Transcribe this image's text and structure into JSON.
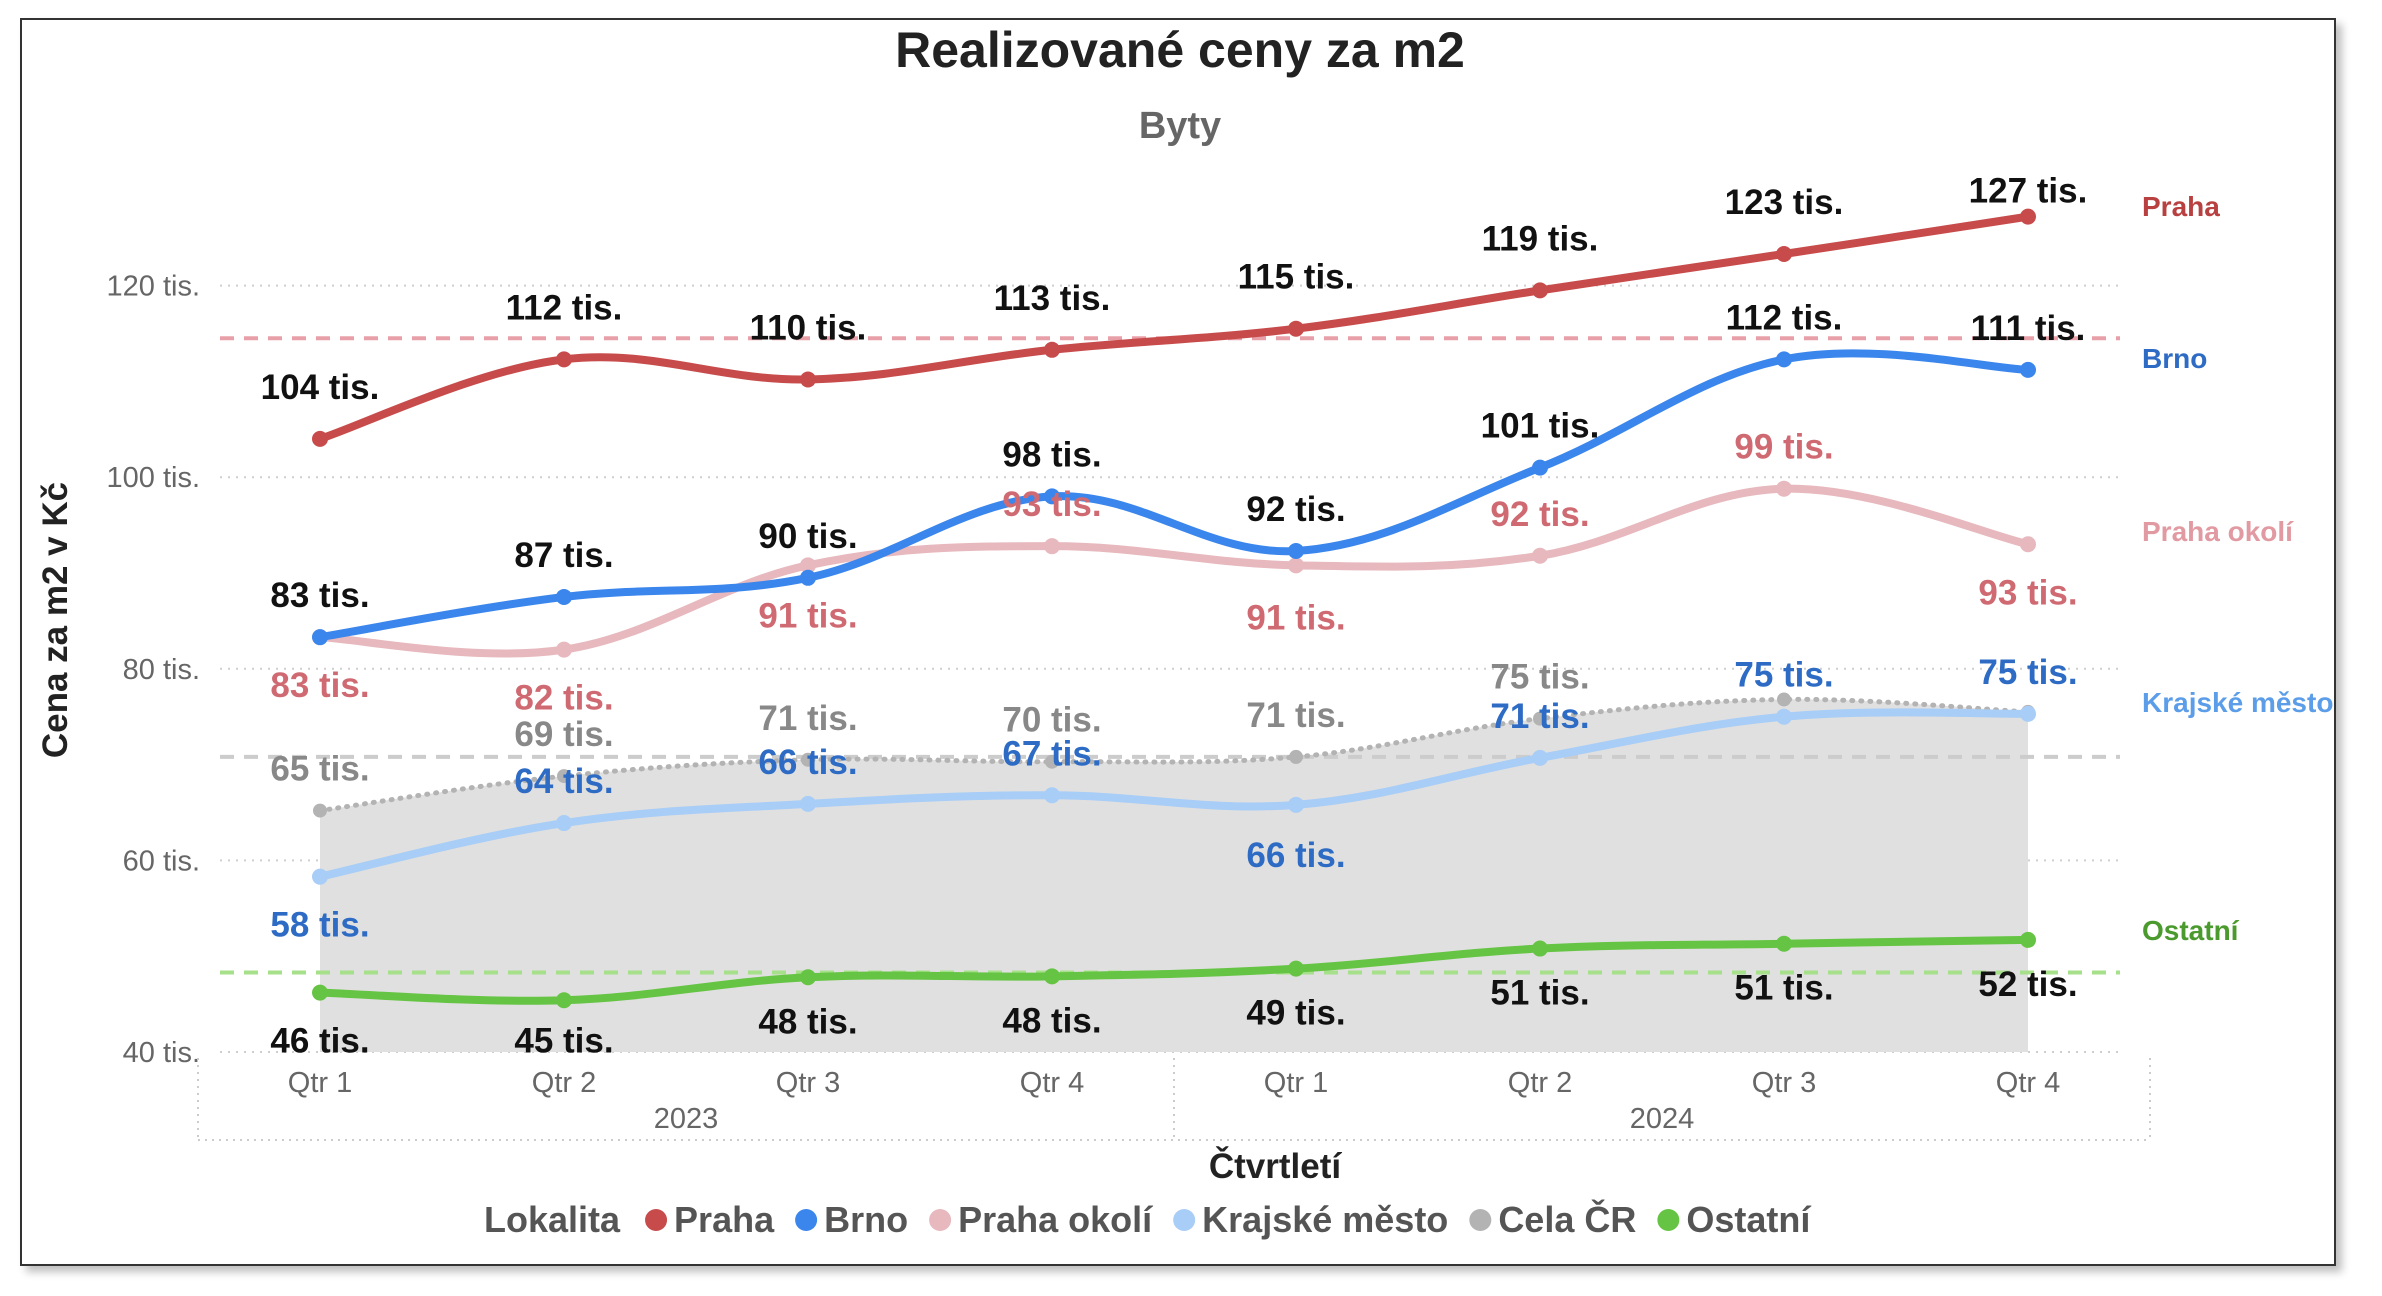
{
  "chart_data": {
    "type": "line",
    "title": "Realizované ceny za m2",
    "subtitle": "Byty",
    "xlabel": "Čtvrtletí",
    "ylabel": "Cena za m2 v Kč",
    "ylim": [
      40,
      130
    ],
    "yticks": [
      {
        "value": 40,
        "label": "40 tis."
      },
      {
        "value": 60,
        "label": "60 tis."
      },
      {
        "value": 80,
        "label": "80 tis."
      },
      {
        "value": 100,
        "label": "100 tis."
      },
      {
        "value": 120,
        "label": "120 tis."
      }
    ],
    "categories": [
      "Qtr 1",
      "Qtr 2",
      "Qtr 3",
      "Qtr 4",
      "Qtr 1",
      "Qtr 2",
      "Qtr 3",
      "Qtr 4"
    ],
    "year_groups": [
      {
        "label": "2023",
        "span": 4
      },
      {
        "label": "2024",
        "span": 4
      }
    ],
    "legend_title": "Lokalita",
    "legend_position": "bottom",
    "grid": "horizontal dotted",
    "series": [
      {
        "name": "Praha",
        "color": "#c84b4b",
        "style": "solid",
        "values": [
          104,
          112.3,
          110.2,
          113.3,
          115.5,
          119.5,
          123.3,
          127.2
        ],
        "labels": [
          "104 tis.",
          "112 tis.",
          "110 tis.",
          "113 tis.",
          "115 tis.",
          "119 tis.",
          "123 tis.",
          "127 tis."
        ],
        "label_color": "#111111",
        "average": 114.5,
        "average_color": "#e8a0a8"
      },
      {
        "name": "Brno",
        "color": "#3a86ec",
        "style": "solid",
        "values": [
          83.3,
          87.5,
          89.5,
          98,
          92.3,
          101,
          112.3,
          111.2
        ],
        "labels": [
          "83 tis.",
          "87 tis.",
          "90 tis.",
          "98 tis.",
          "92 tis.",
          "101 tis.",
          "112 tis.",
          "111 tis."
        ],
        "label_color": "#111111"
      },
      {
        "name": "Praha okolí",
        "color": "#e7b8bd",
        "style": "solid",
        "values": [
          83.3,
          82,
          90.8,
          92.8,
          90.8,
          91.8,
          98.8,
          93
        ],
        "labels": [
          "83 tis.",
          "82 tis.",
          "91 tis.",
          "93 tis.",
          "91 tis.",
          "92 tis.",
          "99 tis.",
          "93 tis."
        ],
        "label_color": "#d06a72"
      },
      {
        "name": "Krajské město",
        "color": "#a8cdf6",
        "style": "solid",
        "values": [
          58.3,
          63.9,
          65.9,
          66.8,
          65.8,
          70.7,
          75,
          75.3
        ],
        "labels": [
          "58 tis.",
          "64 tis.",
          "66 tis.",
          "67 tis.",
          "66 tis.",
          "71 tis.",
          "75 tis.",
          "75 tis."
        ],
        "label_color": "#2d6bc4"
      },
      {
        "name": "Cela ČR",
        "color": "#b3b3b3",
        "style": "dotted",
        "area": true,
        "values": [
          65.2,
          68.8,
          70.5,
          70.3,
          70.8,
          74.8,
          76.8,
          75.5
        ],
        "labels": [
          "65 tis.",
          "69 tis.",
          "71 tis.",
          "70 tis.",
          "71 tis.",
          "75 tis.",
          "",
          ""
        ],
        "label_color": "#888888",
        "average": 70.8,
        "average_color": "#cccccc"
      },
      {
        "name": "Ostatní",
        "color": "#66c444",
        "style": "solid",
        "values": [
          46.2,
          45.4,
          47.8,
          47.9,
          48.7,
          50.8,
          51.3,
          51.7
        ],
        "labels": [
          "46 tis.",
          "45 tis.",
          "48 tis.",
          "48 tis.",
          "49 tis.",
          "51 tis.",
          "51 tis.",
          "52 tis."
        ],
        "label_color": "#111111",
        "average": 48.3,
        "average_color": "#a6e08a"
      }
    ],
    "end_labels": [
      {
        "text": "Praha",
        "color": "#b84040"
      },
      {
        "text": "Brno",
        "color": "#2d6bc4"
      },
      {
        "text": "Praha okolí",
        "color": "#e29aa2"
      },
      {
        "text": "Krajské město",
        "color": "#5b9de8"
      },
      {
        "text": "Ostatní",
        "color": "#4a9a2e"
      }
    ]
  }
}
